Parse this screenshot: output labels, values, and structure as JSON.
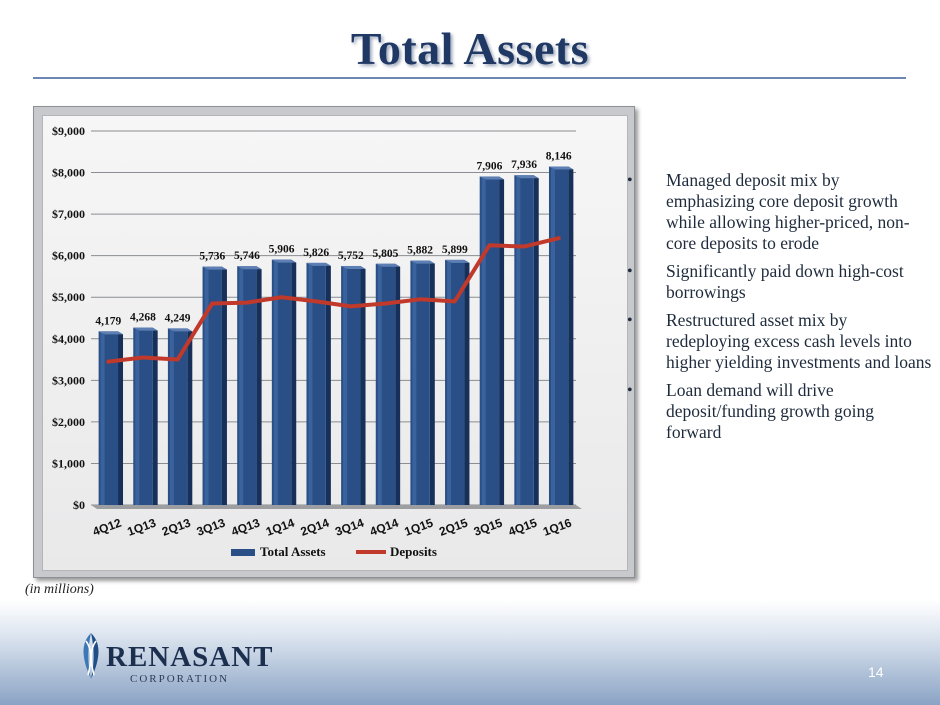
{
  "slide": {
    "title": "Total Assets",
    "units_note": "(in millions)",
    "page_number": "14",
    "bullets": [
      "Managed deposit mix by emphasizing core deposit growth while allowing higher-priced, non-core deposits to erode",
      "Significantly paid down high-cost borrowings",
      "Restructured asset mix by redeploying excess cash levels into higher yielding investments and loans",
      "Loan demand will drive deposit/funding growth going forward"
    ],
    "bullet_symbol": "•"
  },
  "logo": {
    "name": "RENASANT",
    "subtitle": "CORPORATION"
  },
  "colors": {
    "title": "#1f3864",
    "bar": "#2a4f86",
    "deposit_line": "#c0392b"
  },
  "chart_data": {
    "type": "bar",
    "categories": [
      "4Q12",
      "1Q13",
      "2Q13",
      "3Q13",
      "4Q13",
      "1Q14",
      "2Q14",
      "3Q14",
      "4Q14",
      "1Q15",
      "2Q15",
      "3Q15",
      "4Q15",
      "1Q16"
    ],
    "ylim": [
      0,
      9000
    ],
    "yticks": [
      0,
      1000,
      2000,
      3000,
      4000,
      5000,
      6000,
      7000,
      8000,
      9000
    ],
    "ytick_labels": [
      "$0",
      "$1,000",
      "$2,000",
      "$3,000",
      "$4,000",
      "$5,000",
      "$6,000",
      "$7,000",
      "$8,000",
      "$9,000"
    ],
    "grid": true,
    "legend_position": "bottom",
    "series": [
      {
        "name": "Total Assets",
        "type": "bar",
        "values": [
          4179,
          4268,
          4249,
          5736,
          5746,
          5906,
          5826,
          5752,
          5805,
          5882,
          5899,
          7906,
          7936,
          8146
        ],
        "labels": [
          "4,179",
          "4,268",
          "4,249",
          "5,736",
          "5,746",
          "5,906",
          "5,826",
          "5,752",
          "5,805",
          "5,882",
          "5,899",
          "7,906",
          "7,936",
          "8,146"
        ]
      },
      {
        "name": "Deposits",
        "type": "line",
        "values": [
          3450,
          3550,
          3500,
          4850,
          4870,
          5000,
          4900,
          4780,
          4850,
          4950,
          4900,
          6250,
          6220,
          6420
        ]
      }
    ]
  }
}
